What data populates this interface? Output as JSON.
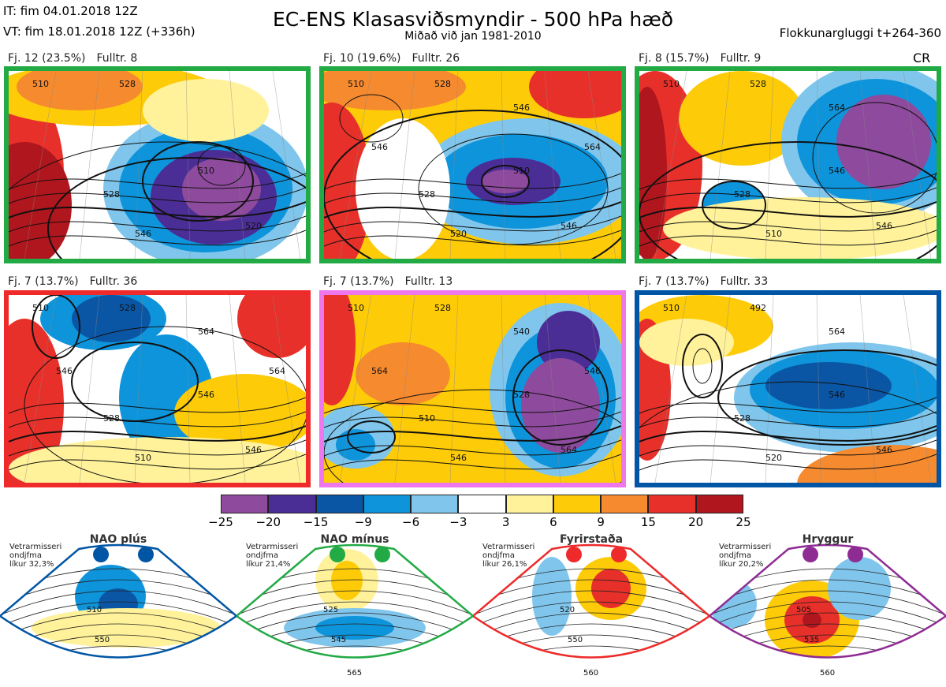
{
  "header": {
    "it_line": "IT: fim 04.01.2018 12Z",
    "vt_line": "VT: fim 18.01.2018 12Z  (+336h)",
    "title": "EC-ENS Klasasviðsmyndir - 500 hPa hæð",
    "subtitle": "Miðað við jan 1981-2010",
    "window": "Flokkunargluggi t+264-360",
    "cr": "CR"
  },
  "colors": {
    "green": "#22aa44",
    "red": "#ee2a2a",
    "pink": "#ee77ee",
    "blue": "#0055a5",
    "purple": "#8e2c94"
  },
  "panels": [
    {
      "fj": "Fj. 12 (23.5%)",
      "fulltr": "Fulltr. 8",
      "border": "green",
      "labels": [
        "510",
        "528",
        "528",
        "510",
        "546",
        "520"
      ]
    },
    {
      "fj": "Fj. 10 (19.6%)",
      "fulltr": "Fulltr. 26",
      "border": "green",
      "labels": [
        "510",
        "528",
        "528",
        "510",
        "520",
        "546",
        "546",
        "564",
        "546"
      ]
    },
    {
      "fj": "Fj. 8 (15.7%)",
      "fulltr": "Fulltr. 9",
      "border": "green",
      "labels": [
        "510",
        "528",
        "528",
        "546",
        "510",
        "546",
        "564"
      ]
    },
    {
      "fj": "Fj. 7 (13.7%)",
      "fulltr": "Fulltr. 36",
      "border": "red",
      "labels": [
        "510",
        "528",
        "528",
        "546",
        "510",
        "546",
        "564",
        "564",
        "546"
      ]
    },
    {
      "fj": "Fj. 7 (13.7%)",
      "fulltr": "Fulltr. 13",
      "border": "pink",
      "labels": [
        "510",
        "528",
        "510",
        "528",
        "546",
        "564",
        "540",
        "546",
        "564"
      ]
    },
    {
      "fj": "Fj. 7 (13.7%)",
      "fulltr": "Fulltr. 33",
      "border": "blue",
      "labels": [
        "510",
        "492",
        "528",
        "546",
        "520",
        "546",
        "564"
      ]
    }
  ],
  "colorbar": {
    "colors": [
      "#8e4a9c",
      "#4b2d96",
      "#0b56a4",
      "#0e94db",
      "#80c6ec",
      "#ffffff",
      "#fff29a",
      "#fdcb08",
      "#f68a2f",
      "#e8302a",
      "#b0161d"
    ],
    "ticks": [
      "−25",
      "−20",
      "−15",
      "−9",
      "−6",
      "−3",
      "3",
      "6",
      "9",
      "15",
      "20",
      "25"
    ]
  },
  "regimes": [
    {
      "title": "NAO plús",
      "note1": "Vetrarmisseri",
      "note2": "ondjfma",
      "note3": "líkur 32,3%",
      "color": "blue",
      "contours": [
        "510",
        "550"
      ]
    },
    {
      "title": "NAO mínus",
      "note1": "Vetrarmisseri",
      "note2": "ondjfma",
      "note3": "líkur 21,4%",
      "color": "green",
      "contours": [
        "525",
        "545",
        "565"
      ]
    },
    {
      "title": "Fyrirstaða",
      "note1": "Vetrarmisseri",
      "note2": "ondjfma",
      "note3": "líkur 26,1%",
      "color": "red",
      "contours": [
        "520",
        "550",
        "560"
      ]
    },
    {
      "title": "Hryggur",
      "note1": "Vetrarmisseri",
      "note2": "ondjfma",
      "note3": "líkur 20,2%",
      "color": "purple",
      "contours": [
        "505",
        "535",
        "560"
      ]
    }
  ]
}
